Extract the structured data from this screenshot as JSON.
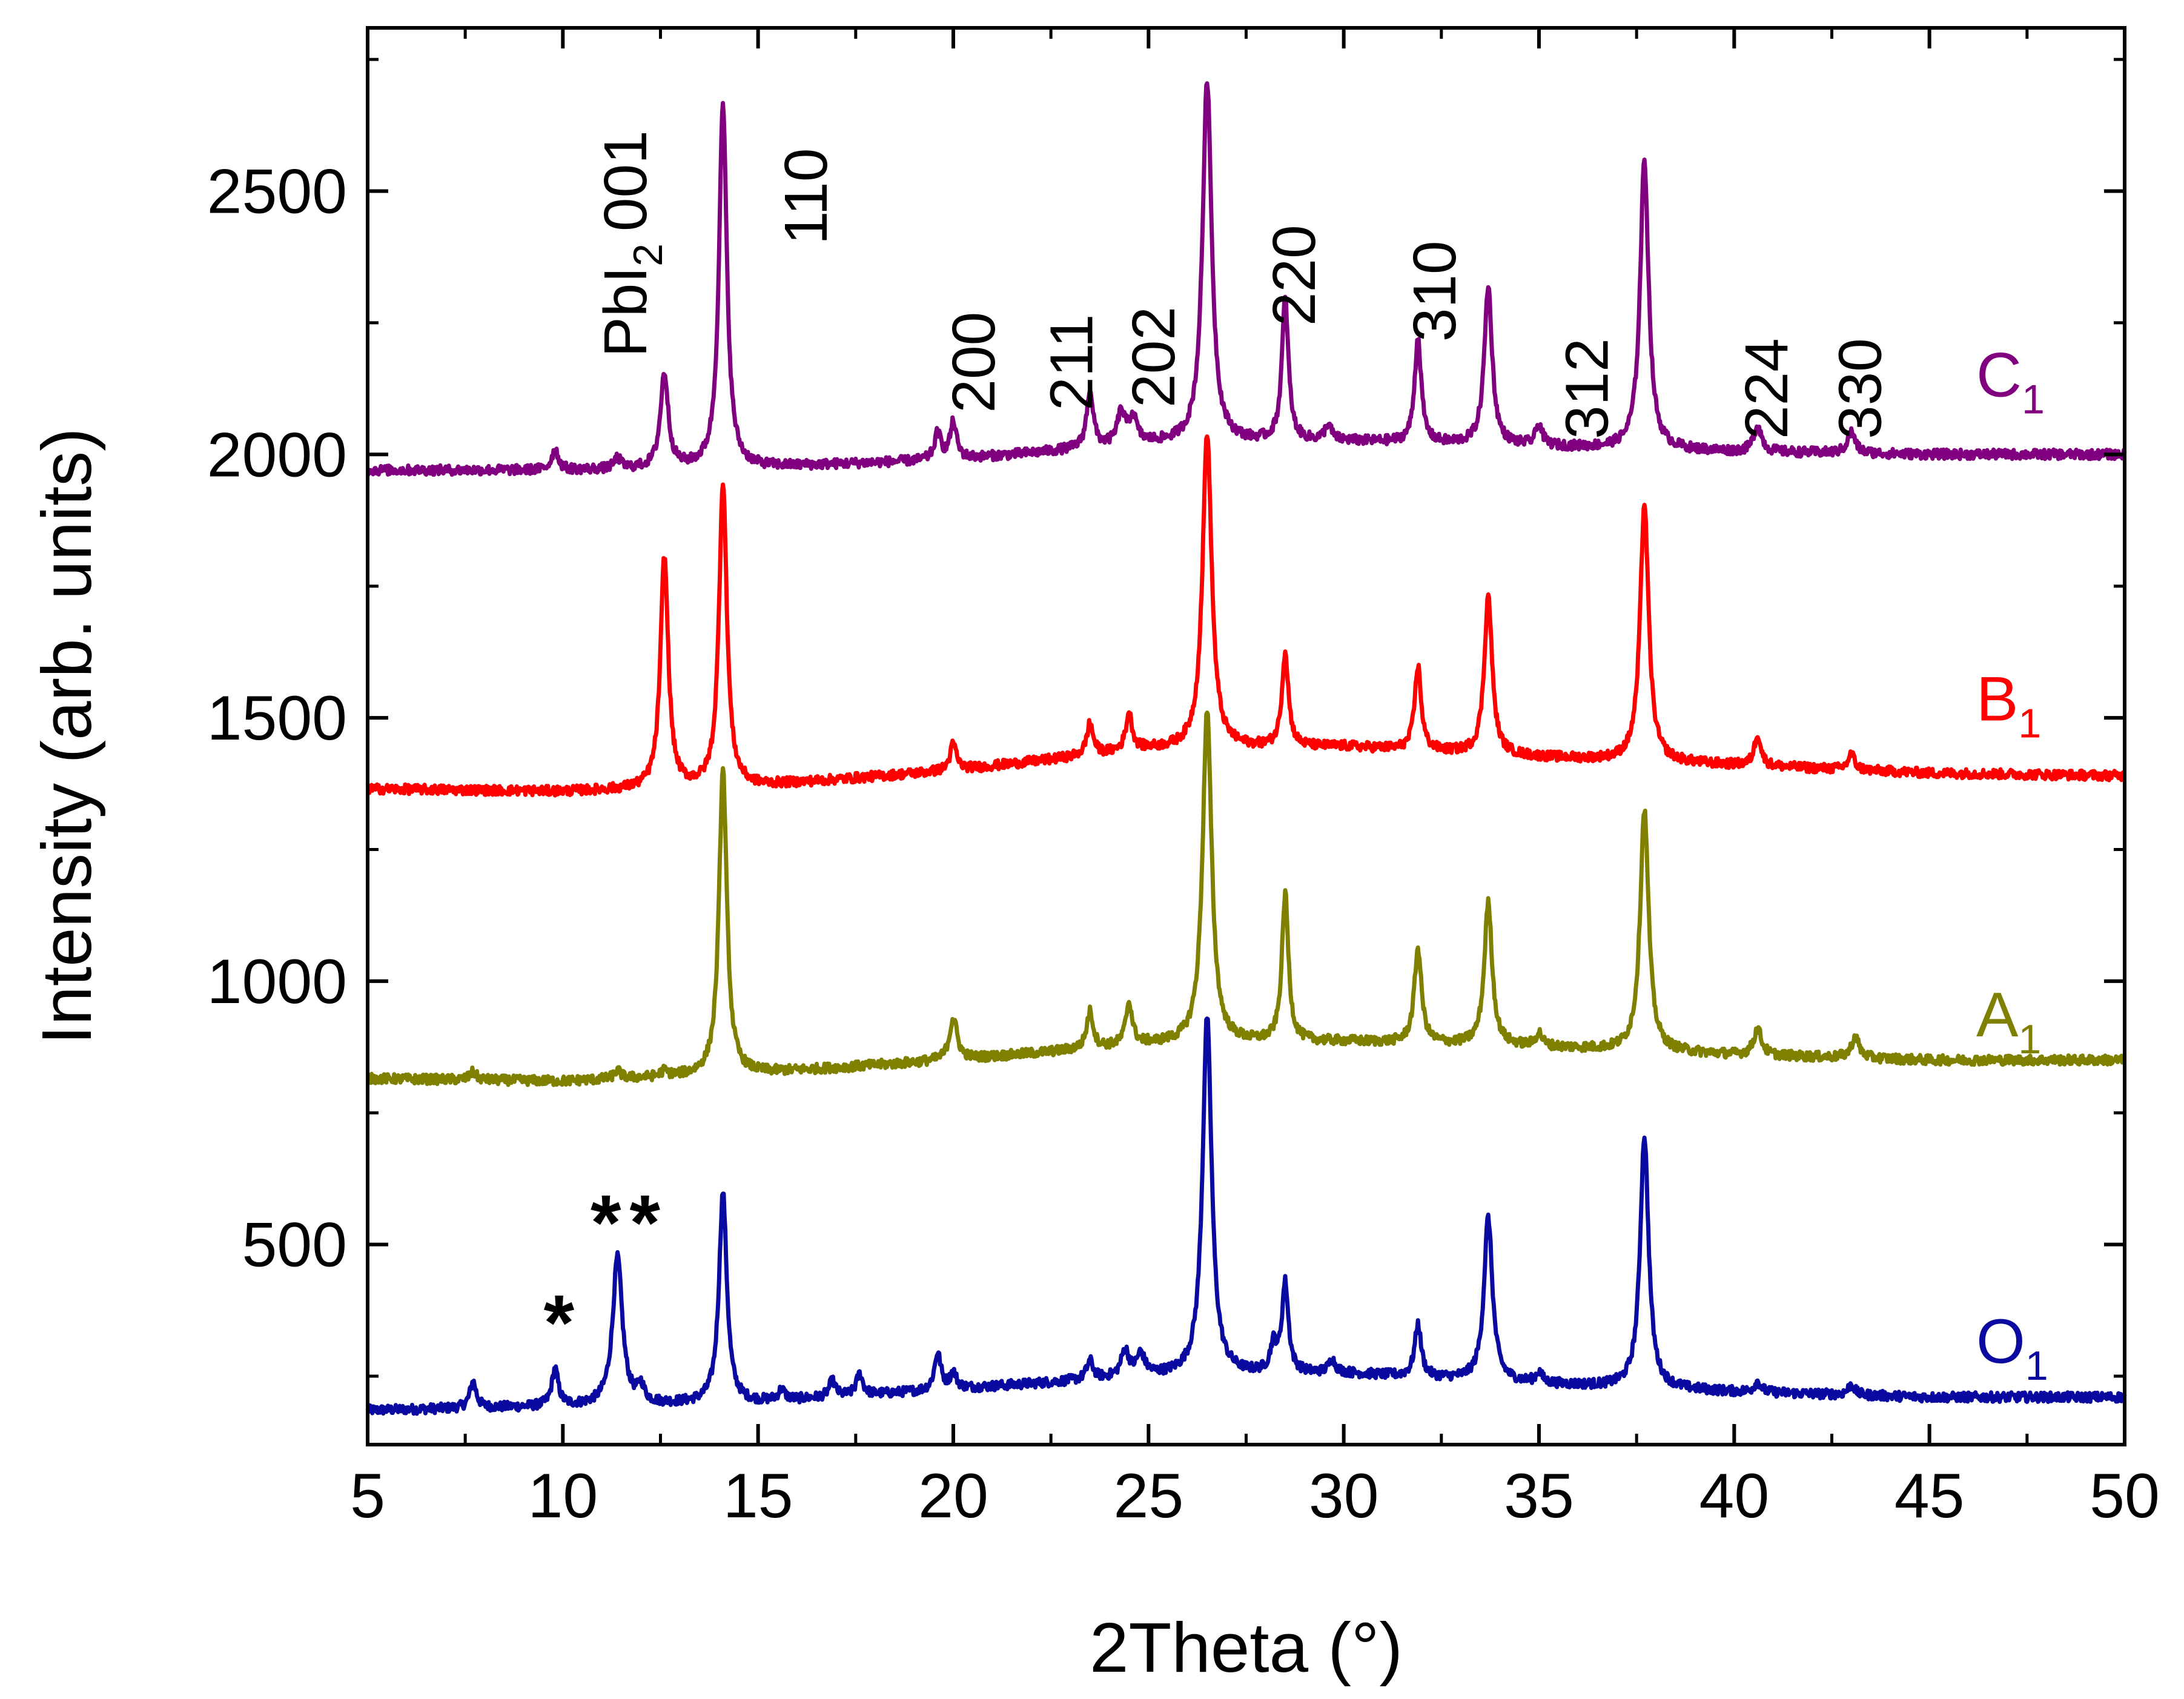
{
  "chart_data": {
    "type": "line",
    "title": "",
    "xlabel": "2Theta (°)",
    "ylabel": "Intensity (arb. units)",
    "xlim": [
      5,
      50
    ],
    "ylim": [
      120,
      2810
    ],
    "xticks": [
      5,
      10,
      15,
      20,
      25,
      30,
      35,
      40,
      45,
      50
    ],
    "yticks": [
      500,
      1000,
      1500,
      2000,
      2500
    ],
    "grid": false,
    "series": [
      {
        "name": "O",
        "subscript": "1",
        "color": "#0a0aa0",
        "baseline": [
          [
            5,
            185
          ],
          [
            15,
            200
          ],
          [
            20,
            225
          ],
          [
            25,
            250
          ],
          [
            30,
            255
          ],
          [
            35,
            235
          ],
          [
            40,
            220
          ],
          [
            45,
            210
          ],
          [
            50,
            210
          ]
        ],
        "peaks": [
          [
            7.7,
            50,
            0.1
          ],
          [
            9.8,
            70,
            0.1
          ],
          [
            11.4,
            280,
            0.15
          ],
          [
            12.0,
            30,
            0.1
          ],
          [
            14.1,
            400,
            0.12
          ],
          [
            15.6,
            20,
            0.1
          ],
          [
            16.9,
            30,
            0.1
          ],
          [
            17.6,
            40,
            0.1
          ],
          [
            19.6,
            70,
            0.1
          ],
          [
            20.0,
            30,
            0.1
          ],
          [
            23.5,
            35,
            0.1
          ],
          [
            24.4,
            50,
            0.12
          ],
          [
            24.8,
            40,
            0.12
          ],
          [
            26.5,
            680,
            0.14
          ],
          [
            28.2,
            50,
            0.1
          ],
          [
            28.5,
            170,
            0.1
          ],
          [
            29.7,
            25,
            0.1
          ],
          [
            31.9,
            100,
            0.1
          ],
          [
            33.7,
            310,
            0.13
          ],
          [
            35.0,
            20,
            0.1
          ],
          [
            37.7,
            480,
            0.13
          ],
          [
            40.6,
            20,
            0.1
          ],
          [
            43.0,
            20,
            0.1
          ]
        ],
        "label_x": 46.2,
        "label_y": 275
      },
      {
        "name": "A",
        "subscript": "1",
        "color": "#7f7f00",
        "baseline": [
          [
            5,
            815
          ],
          [
            10,
            810
          ],
          [
            15,
            825
          ],
          [
            20,
            850
          ],
          [
            25,
            880
          ],
          [
            30,
            885
          ],
          [
            35,
            875
          ],
          [
            40,
            860
          ],
          [
            45,
            850
          ],
          [
            50,
            850
          ]
        ],
        "peaks": [
          [
            7.7,
            15,
            0.1
          ],
          [
            11.4,
            15,
            0.1
          ],
          [
            12.6,
            10,
            0.1
          ],
          [
            14.1,
            580,
            0.12
          ],
          [
            20.0,
            80,
            0.12
          ],
          [
            23.5,
            70,
            0.1
          ],
          [
            24.5,
            80,
            0.1
          ],
          [
            26.5,
            630,
            0.14
          ],
          [
            28.5,
            280,
            0.1
          ],
          [
            31.9,
            180,
            0.11
          ],
          [
            33.7,
            270,
            0.12
          ],
          [
            35.0,
            25,
            0.1
          ],
          [
            37.7,
            460,
            0.13
          ],
          [
            40.6,
            50,
            0.12
          ],
          [
            43.1,
            40,
            0.12
          ]
        ],
        "label_x": 46.2,
        "label_y": 895
      },
      {
        "name": "B",
        "subscript": "1",
        "color": "#ff0000",
        "baseline": [
          [
            5,
            1365
          ],
          [
            10,
            1360
          ],
          [
            15,
            1370
          ],
          [
            20,
            1400
          ],
          [
            25,
            1440
          ],
          [
            30,
            1445
          ],
          [
            35,
            1425
          ],
          [
            40,
            1410
          ],
          [
            45,
            1395
          ],
          [
            50,
            1390
          ]
        ],
        "peaks": [
          [
            12.6,
            440,
            0.12
          ],
          [
            14.1,
            580,
            0.12
          ],
          [
            20.0,
            50,
            0.1
          ],
          [
            23.5,
            60,
            0.1
          ],
          [
            24.5,
            70,
            0.1
          ],
          [
            26.5,
            600,
            0.14
          ],
          [
            28.5,
            180,
            0.1
          ],
          [
            31.9,
            160,
            0.1
          ],
          [
            33.7,
            300,
            0.12
          ],
          [
            37.7,
            490,
            0.13
          ],
          [
            40.6,
            60,
            0.1
          ],
          [
            43.0,
            30,
            0.1
          ]
        ],
        "label_x": 46.2,
        "label_y": 1495
      },
      {
        "name": "C",
        "subscript": "1",
        "color": "#800080",
        "baseline": [
          [
            5,
            1970
          ],
          [
            10,
            1970
          ],
          [
            15,
            1975
          ],
          [
            20,
            1990
          ],
          [
            25,
            2020
          ],
          [
            30,
            2025
          ],
          [
            35,
            2015
          ],
          [
            40,
            2005
          ],
          [
            45,
            2000
          ],
          [
            50,
            2000
          ]
        ],
        "peaks": [
          [
            9.8,
            40,
            0.1
          ],
          [
            11.4,
            20,
            0.1
          ],
          [
            12.6,
            180,
            0.12
          ],
          [
            14.1,
            690,
            0.12
          ],
          [
            19.6,
            50,
            0.1
          ],
          [
            20.0,
            70,
            0.1
          ],
          [
            23.5,
            110,
            0.1
          ],
          [
            24.3,
            60,
            0.12
          ],
          [
            24.6,
            50,
            0.12
          ],
          [
            26.5,
            690,
            0.14
          ],
          [
            28.5,
            270,
            0.1
          ],
          [
            29.6,
            30,
            0.1
          ],
          [
            31.9,
            200,
            0.1
          ],
          [
            33.7,
            300,
            0.12
          ],
          [
            35.0,
            40,
            0.1
          ],
          [
            37.7,
            550,
            0.13
          ],
          [
            40.6,
            50,
            0.12
          ],
          [
            43.0,
            40,
            0.12
          ]
        ],
        "label_x": 46.2,
        "label_y": 2110
      }
    ],
    "annotations": {
      "miller_indices": [
        {
          "text": "110",
          "x": 16.2,
          "y": 2490
        },
        {
          "text": "200",
          "x": 20.5,
          "y": 2175
        },
        {
          "text": "211",
          "x": 23.0,
          "y": 2175
        },
        {
          "text": "202",
          "x": 25.1,
          "y": 2185
        },
        {
          "text": "220",
          "x": 28.7,
          "y": 2340
        },
        {
          "text": "310",
          "x": 32.3,
          "y": 2310
        },
        {
          "text": "312",
          "x": 36.2,
          "y": 2125
        },
        {
          "text": "224",
          "x": 40.8,
          "y": 2125
        },
        {
          "text": "330",
          "x": 43.2,
          "y": 2125
        }
      ],
      "pbi2_label": {
        "formula": "PbI",
        "subscript": "2",
        "index": "001",
        "color": "#ff0000",
        "x": 12.6,
        "y": 2400
      },
      "impurity_markers": [
        {
          "text": "*",
          "x": 9.9,
          "y": 300
        },
        {
          "text": "*",
          "x": 11.1,
          "y": 490
        },
        {
          "text": "*",
          "x": 12.1,
          "y": 490
        }
      ]
    }
  }
}
